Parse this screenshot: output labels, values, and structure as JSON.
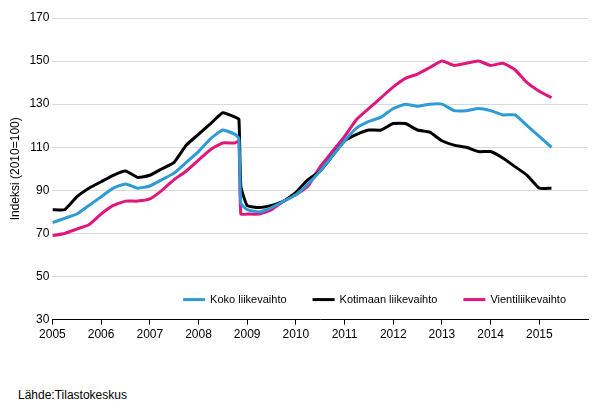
{
  "chart_data": {
    "type": "line",
    "y_label": "Indeksi (2010=100)",
    "source": "Lähde:Tilastokeskus",
    "x": [
      2005,
      2005.25,
      2005.5,
      2005.75,
      2006,
      2006.25,
      2006.5,
      2006.75,
      2007,
      2007.25,
      2007.5,
      2007.75,
      2008,
      2008.25,
      2008.5,
      2008.75,
      2008.83,
      2008.87,
      2009,
      2009.25,
      2009.5,
      2009.75,
      2010,
      2010.25,
      2010.5,
      2010.75,
      2011,
      2011.25,
      2011.5,
      2011.75,
      2012,
      2012.25,
      2012.5,
      2012.75,
      2013,
      2013.25,
      2013.5,
      2013.75,
      2014,
      2014.25,
      2014.5,
      2014.75,
      2015,
      2015.25
    ],
    "series": [
      {
        "name": "Koko liikevaihto",
        "color": "#2e9bd6",
        "values": [
          75,
          77,
          79,
          83,
          87,
          91,
          93,
          91,
          92,
          95,
          98,
          103,
          108,
          114,
          118,
          116,
          114,
          84,
          81,
          80,
          82,
          85,
          88,
          93,
          99,
          106,
          113,
          119,
          122,
          124,
          128,
          130,
          129,
          130,
          130,
          127,
          127,
          128,
          127,
          125,
          125,
          120,
          115,
          110
        ]
      },
      {
        "name": "Kotimaan liikevaihto",
        "color": "#000000",
        "values": [
          81,
          81,
          87,
          91,
          94,
          97,
          99,
          96,
          97,
          100,
          103,
          111,
          116,
          121,
          126,
          124,
          123,
          92,
          83,
          82,
          83,
          85,
          89,
          95,
          99,
          106,
          113,
          116,
          118,
          118,
          121,
          121,
          118,
          117,
          113,
          111,
          110,
          108,
          108,
          105,
          101,
          97,
          91,
          91
        ]
      },
      {
        "name": "Vientiliikevaihto",
        "color": "#e0177a",
        "values": [
          69,
          70,
          72,
          74,
          79,
          83,
          85,
          85,
          86,
          90,
          95,
          99,
          104,
          109,
          112,
          112,
          113,
          79,
          79,
          79,
          81,
          85,
          88,
          92,
          101,
          108,
          115,
          123,
          128,
          133,
          138,
          142,
          144,
          147,
          150,
          148,
          149,
          150,
          148,
          149,
          146,
          140,
          136,
          133
        ]
      }
    ],
    "xlim": [
      2005,
      2016
    ],
    "xticks": [
      2005,
      2006,
      2007,
      2008,
      2009,
      2010,
      2011,
      2012,
      2013,
      2014,
      2015
    ],
    "ylim": [
      30,
      170
    ],
    "yticks": [
      30,
      50,
      70,
      90,
      110,
      130,
      150,
      170
    ],
    "grid": true,
    "legend": "bottom"
  }
}
